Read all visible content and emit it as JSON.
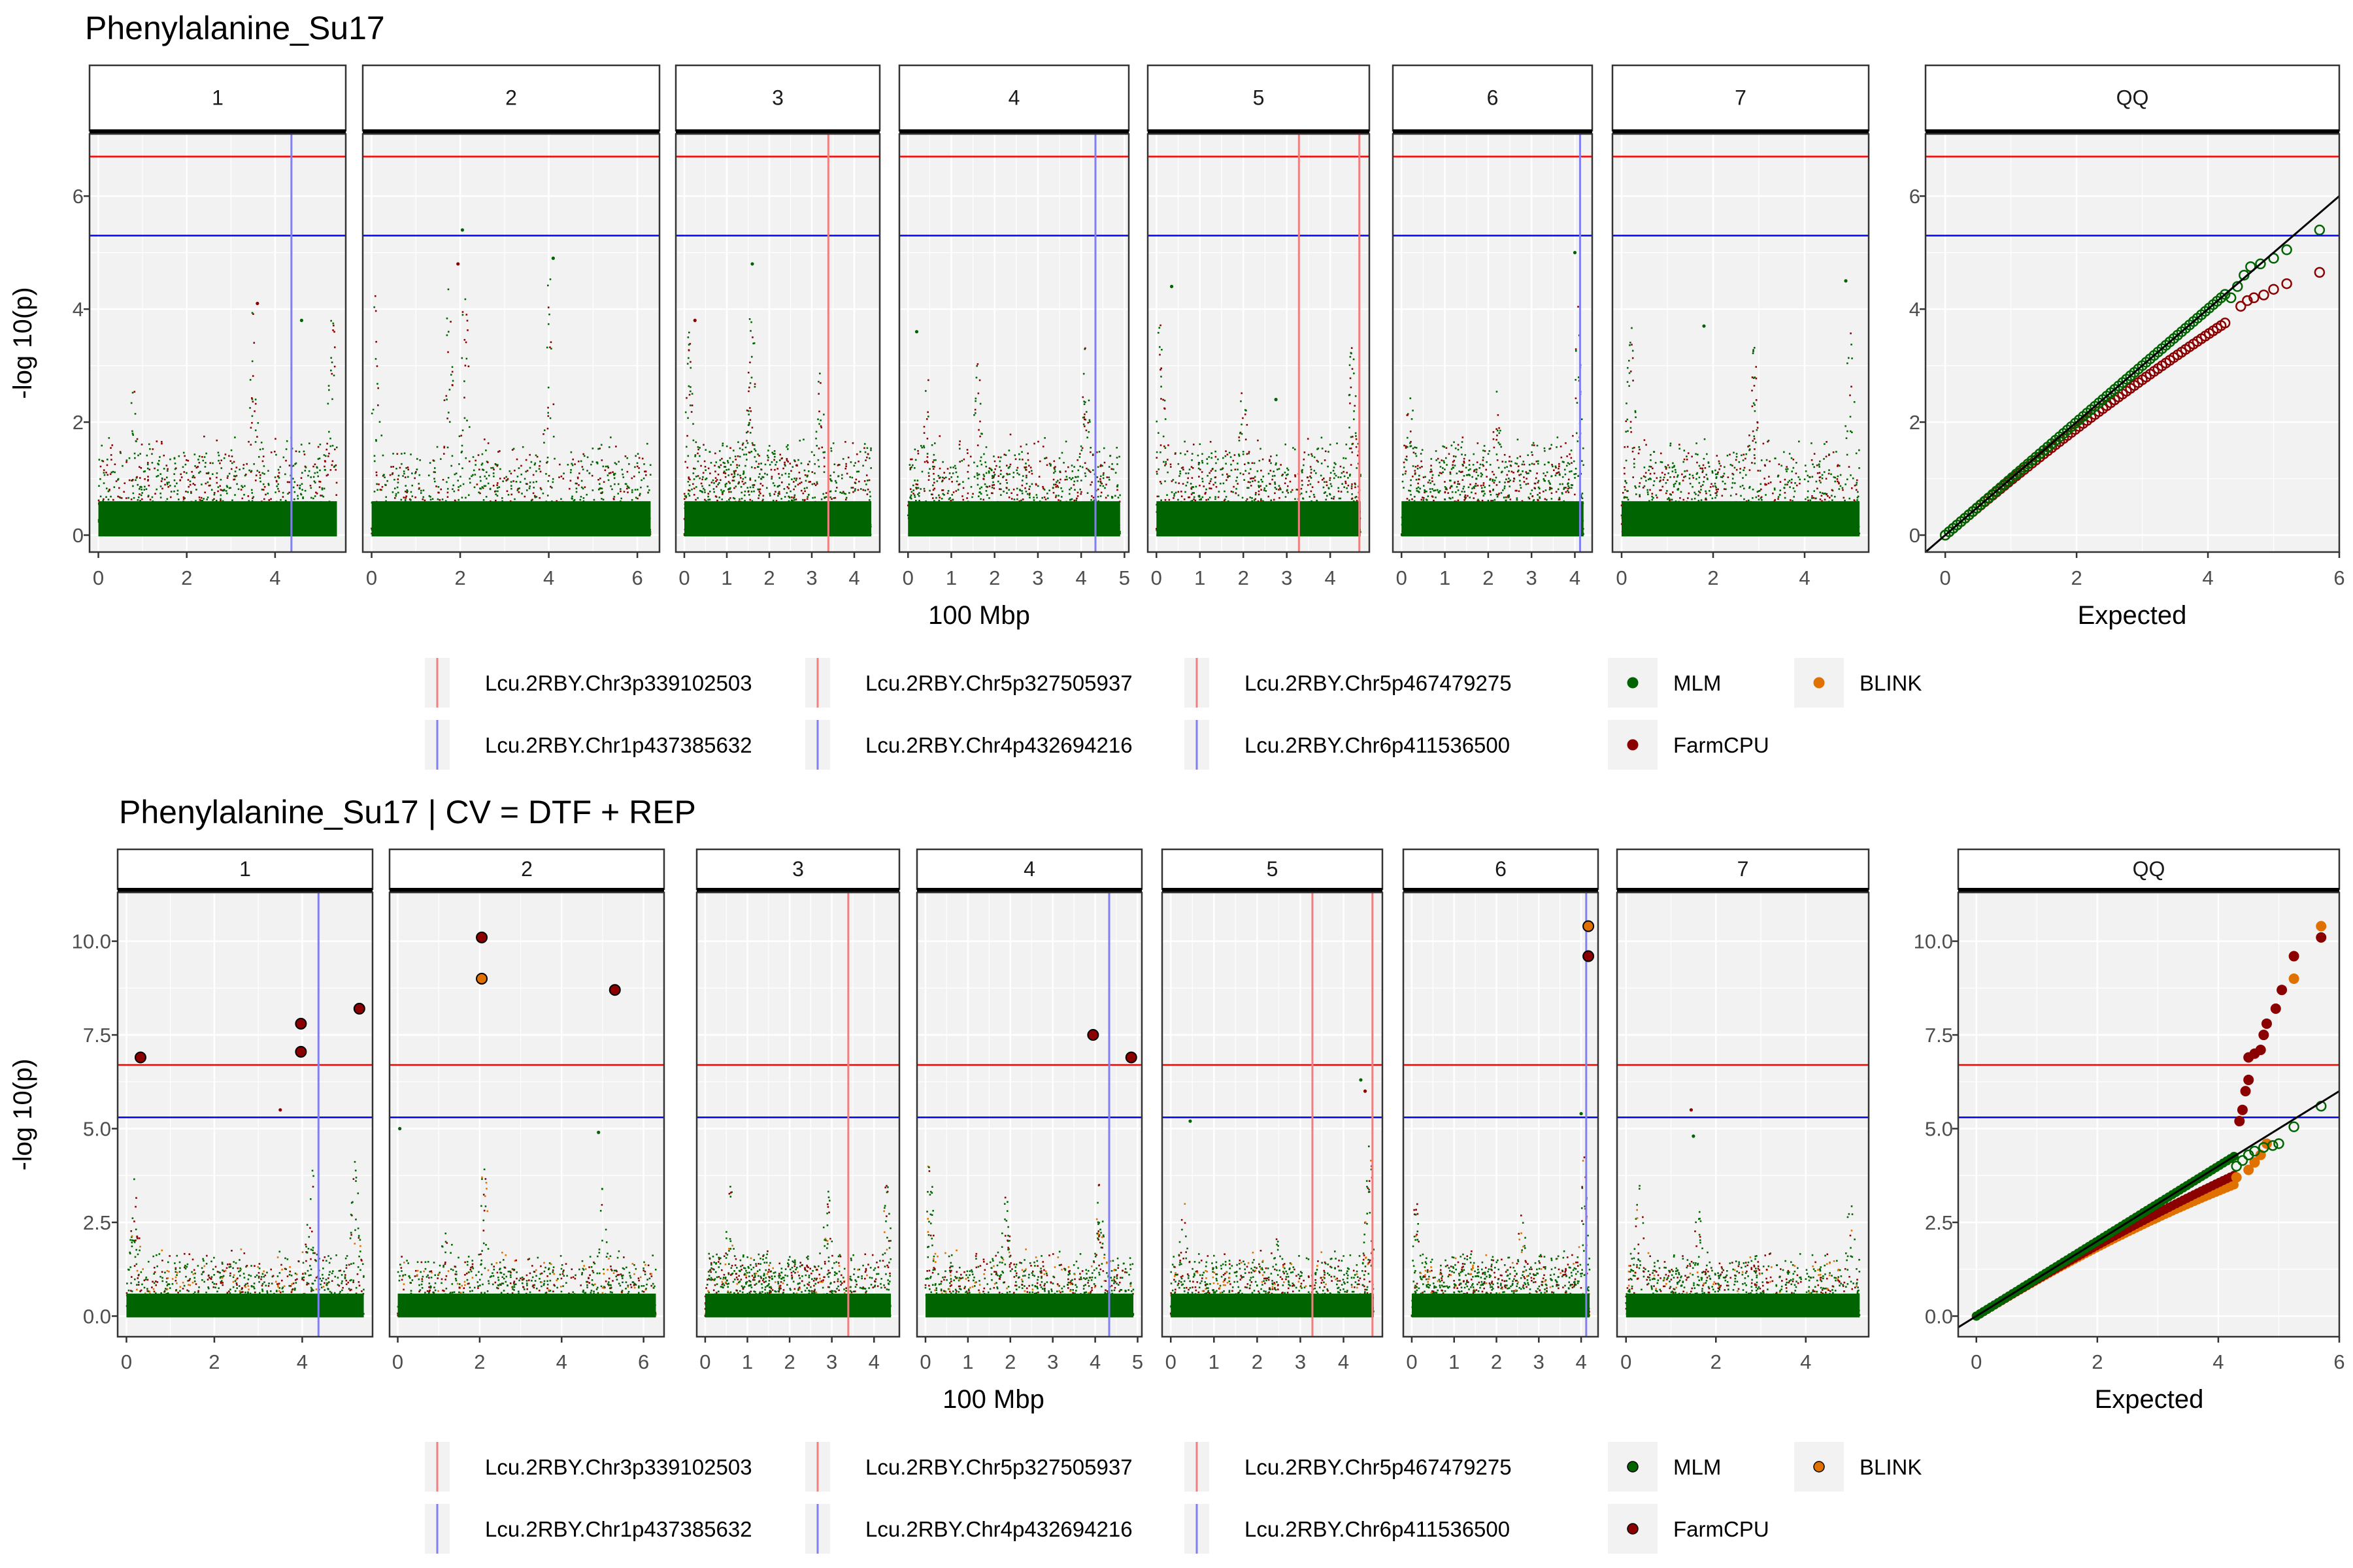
{
  "colors": {
    "panel_bg": "#f2f2f2",
    "grid": "#ffffff",
    "strip_bg": "#ffffff",
    "threshold_bonferroni": "#ff0000",
    "threshold_fdr": "#0000ff",
    "mlm": "#006400",
    "farmcpu": "#8b0000",
    "blink": "#e07000",
    "red_marker": "#f08080",
    "blue_marker": "#8080f0",
    "legend_key_bg": "#f2f2f2"
  },
  "legend": {
    "markers": [
      {
        "label": "Lcu.2RBY.Chr3p339102503",
        "color": "red"
      },
      {
        "label": "Lcu.2RBY.Chr5p327505937",
        "color": "red"
      },
      {
        "label": "Lcu.2RBY.Chr5p467479275",
        "color": "red"
      },
      {
        "label": "Lcu.2RBY.Chr1p437385632",
        "color": "blue"
      },
      {
        "label": "Lcu.2RBY.Chr4p432694216",
        "color": "blue"
      },
      {
        "label": "Lcu.2RBY.Chr6p411536500",
        "color": "blue"
      }
    ],
    "models": [
      {
        "label": "MLM",
        "color": "mlm"
      },
      {
        "label": "BLINK",
        "color": "blink"
      },
      {
        "label": "FarmCPU",
        "color": "farmcpu"
      }
    ]
  },
  "chart_data": [
    {
      "type": "scatter",
      "subtype": "manhattan+qq",
      "title": "Phenylalanine_Su17",
      "xlabel": "100 Mbp",
      "ylabel": "-log 10(p)",
      "qq_xlabel": "Expected",
      "ylim": [
        -0.3,
        7.1
      ],
      "yticks": [
        "0",
        "2",
        "4",
        "6"
      ],
      "ytick_values": [
        0,
        2,
        4,
        6
      ],
      "thresholds": {
        "bonferroni": 6.7,
        "fdr": 5.3
      },
      "models": [
        "MLM",
        "FarmCPU"
      ],
      "facets": [
        {
          "label": "1",
          "xlim": [
            -0.2,
            5.6
          ],
          "xticks": [
            0,
            2,
            4
          ],
          "length": 5.4,
          "markers": [
            {
              "pos": 4.37,
              "color": "blue"
            }
          ],
          "peaks": [
            {
              "pos": 3.5,
              "h": 4.1
            },
            {
              "pos": 0.8,
              "h": 2.8
            },
            {
              "pos": 5.3,
              "h": 4.0
            }
          ],
          "outliers": [
            {
              "x": 3.6,
              "y": 4.1,
              "m": "FarmCPU"
            },
            {
              "x": 4.6,
              "y": 3.8,
              "m": "MLM"
            }
          ]
        },
        {
          "label": "2",
          "xlim": [
            -0.2,
            6.5
          ],
          "xticks": [
            0,
            2,
            4,
            6
          ],
          "length": 6.3,
          "markers": [],
          "peaks": [
            {
              "pos": 0.1,
              "h": 4.4
            },
            {
              "pos": 1.75,
              "h": 4.5
            },
            {
              "pos": 2.1,
              "h": 4.8
            },
            {
              "pos": 4.0,
              "h": 4.9
            }
          ],
          "outliers": [
            {
              "x": 2.05,
              "y": 5.4,
              "m": "MLM"
            },
            {
              "x": 1.95,
              "y": 4.8,
              "m": "FarmCPU"
            },
            {
              "x": 4.1,
              "y": 4.9,
              "m": "MLM"
            }
          ]
        },
        {
          "label": "3",
          "xlim": [
            -0.2,
            4.6
          ],
          "xticks": [
            0,
            1,
            2,
            3,
            4
          ],
          "length": 4.4,
          "markers": [
            {
              "pos": 3.39,
              "color": "red"
            }
          ],
          "peaks": [
            {
              "pos": 1.6,
              "h": 4.8
            },
            {
              "pos": 0.1,
              "h": 3.7
            },
            {
              "pos": 3.2,
              "h": 3.0
            }
          ],
          "outliers": [
            {
              "x": 1.6,
              "y": 4.8,
              "m": "MLM"
            },
            {
              "x": 0.25,
              "y": 3.8,
              "m": "FarmCPU"
            }
          ]
        },
        {
          "label": "4",
          "xlim": [
            -0.2,
            5.1
          ],
          "xticks": [
            0,
            1,
            2,
            3,
            4,
            5
          ],
          "length": 4.9,
          "markers": [
            {
              "pos": 4.33,
              "color": "blue"
            }
          ],
          "peaks": [
            {
              "pos": 0.4,
              "h": 3.5
            },
            {
              "pos": 1.6,
              "h": 3.3
            },
            {
              "pos": 4.1,
              "h": 3.4
            }
          ],
          "outliers": [
            {
              "x": 0.2,
              "y": 3.6,
              "m": "MLM"
            }
          ]
        },
        {
          "label": "5",
          "xlim": [
            -0.2,
            4.9
          ],
          "xticks": [
            0,
            1,
            2,
            3,
            4
          ],
          "length": 4.7,
          "markers": [
            {
              "pos": 3.28,
              "color": "red"
            },
            {
              "pos": 4.67,
              "color": "red"
            }
          ],
          "peaks": [
            {
              "pos": 0.1,
              "h": 4.2
            },
            {
              "pos": 4.5,
              "h": 3.6
            },
            {
              "pos": 2.0,
              "h": 2.8
            }
          ],
          "outliers": [
            {
              "x": 0.35,
              "y": 4.4,
              "m": "MLM"
            },
            {
              "x": 2.75,
              "y": 2.4,
              "m": "MLM"
            }
          ]
        },
        {
          "label": "6",
          "xlim": [
            -0.2,
            4.4
          ],
          "xticks": [
            0,
            1,
            2,
            3,
            4
          ],
          "length": 4.2,
          "markers": [
            {
              "pos": 4.12,
              "color": "blue"
            }
          ],
          "peaks": [
            {
              "pos": 4.05,
              "h": 4.2
            },
            {
              "pos": 0.2,
              "h": 2.8
            },
            {
              "pos": 2.2,
              "h": 2.6
            }
          ],
          "outliers": [
            {
              "x": 4.0,
              "y": 5.0,
              "m": "MLM"
            }
          ]
        },
        {
          "label": "7",
          "xlim": [
            -0.2,
            5.4
          ],
          "xticks": [
            0,
            2,
            4
          ],
          "length": 5.2,
          "markers": [],
          "peaks": [
            {
              "pos": 0.2,
              "h": 3.8
            },
            {
              "pos": 2.9,
              "h": 3.4
            },
            {
              "pos": 5.0,
              "h": 3.8
            }
          ],
          "outliers": [
            {
              "x": 4.9,
              "y": 4.5,
              "m": "MLM"
            },
            {
              "x": 1.8,
              "y": 3.7,
              "m": "MLM"
            }
          ]
        }
      ],
      "qq": {
        "label": "QQ",
        "xlim": [
          -0.3,
          6.0
        ],
        "xticks": [
          0,
          2,
          4,
          6
        ],
        "line_intercept": 0,
        "line_slope": 1,
        "tails": {
          "MLM": [
            [
              4.35,
              4.2
            ],
            [
              4.45,
              4.4
            ],
            [
              4.55,
              4.6
            ],
            [
              4.65,
              4.75
            ],
            [
              4.8,
              4.8
            ],
            [
              5.0,
              4.9
            ],
            [
              5.2,
              5.05
            ],
            [
              5.7,
              5.4
            ]
          ],
          "FarmCPU": [
            [
              4.5,
              4.05
            ],
            [
              4.6,
              4.15
            ],
            [
              4.7,
              4.2
            ],
            [
              4.85,
              4.25
            ],
            [
              5.0,
              4.35
            ],
            [
              5.2,
              4.45
            ],
            [
              5.7,
              4.65
            ]
          ]
        },
        "open_markers": true
      }
    },
    {
      "type": "scatter",
      "subtype": "manhattan+qq",
      "title": "Phenylalanine_Su17 | CV = DTF + REP",
      "xlabel": "100 Mbp",
      "ylabel": "-log 10(p)",
      "qq_xlabel": "Expected",
      "ylim": [
        -0.55,
        11.3
      ],
      "yticks": [
        "0.0",
        "2.5",
        "5.0",
        "7.5",
        "10.0"
      ],
      "ytick_values": [
        0,
        2.5,
        5,
        7.5,
        10
      ],
      "thresholds": {
        "bonferroni": 6.7,
        "fdr": 5.3
      },
      "models": [
        "MLM",
        "FarmCPU",
        "BLINK"
      ],
      "facets": [
        {
          "label": "1",
          "xlim": [
            -0.2,
            5.6
          ],
          "xticks": [
            0,
            2,
            4
          ],
          "length": 5.4,
          "markers": [
            {
              "pos": 4.37,
              "color": "blue"
            }
          ],
          "peaks": [
            {
              "pos": 0.2,
              "h": 3.9
            },
            {
              "pos": 4.2,
              "h": 4.4
            },
            {
              "pos": 5.2,
              "h": 4.2
            }
          ],
          "hits": [
            {
              "x": 0.32,
              "y": 6.9,
              "m": "FarmCPU"
            },
            {
              "x": 3.97,
              "y": 7.8,
              "m": "FarmCPU"
            },
            {
              "x": 3.97,
              "y": 7.05,
              "m": "FarmCPU"
            },
            {
              "x": 5.3,
              "y": 8.2,
              "m": "FarmCPU"
            }
          ],
          "outliers": [
            {
              "x": 3.5,
              "y": 5.5,
              "m": "FarmCPU"
            }
          ]
        },
        {
          "label": "2",
          "xlim": [
            -0.2,
            6.5
          ],
          "xticks": [
            0,
            2,
            4,
            6
          ],
          "length": 6.3,
          "markers": [],
          "peaks": [
            {
              "pos": 1.2,
              "h": 4.3
            },
            {
              "pos": 2.1,
              "h": 4.5
            },
            {
              "pos": 5.0,
              "h": 3.5
            }
          ],
          "hits": [
            {
              "x": 2.05,
              "y": 10.1,
              "m": "FarmCPU"
            },
            {
              "x": 2.05,
              "y": 9.0,
              "m": "BLINK"
            },
            {
              "x": 5.3,
              "y": 8.7,
              "m": "FarmCPU"
            }
          ],
          "outliers": [
            {
              "x": 0.05,
              "y": 5.0,
              "m": "MLM"
            },
            {
              "x": 4.9,
              "y": 4.9,
              "m": "MLM"
            }
          ]
        },
        {
          "label": "3",
          "xlim": [
            -0.2,
            4.6
          ],
          "xticks": [
            0,
            1,
            2,
            3,
            4
          ],
          "length": 4.4,
          "markers": [
            {
              "pos": 3.39,
              "color": "red"
            }
          ],
          "peaks": [
            {
              "pos": 0.6,
              "h": 3.8
            },
            {
              "pos": 2.9,
              "h": 3.8
            },
            {
              "pos": 4.3,
              "h": 3.6
            }
          ],
          "hits": [],
          "outliers": []
        },
        {
          "label": "4",
          "xlim": [
            -0.2,
            5.1
          ],
          "xticks": [
            0,
            1,
            2,
            3,
            4,
            5
          ],
          "length": 4.9,
          "markers": [
            {
              "pos": 4.33,
              "color": "blue"
            }
          ],
          "peaks": [
            {
              "pos": 0.1,
              "h": 4.3
            },
            {
              "pos": 1.9,
              "h": 3.5
            },
            {
              "pos": 4.1,
              "h": 3.6
            }
          ],
          "hits": [
            {
              "x": 3.95,
              "y": 7.5,
              "m": "FarmCPU"
            },
            {
              "x": 4.85,
              "y": 6.9,
              "m": "FarmCPU"
            }
          ],
          "outliers": []
        },
        {
          "label": "5",
          "xlim": [
            -0.2,
            4.9
          ],
          "xticks": [
            0,
            1,
            2,
            3,
            4
          ],
          "length": 4.7,
          "markers": [
            {
              "pos": 3.28,
              "color": "red"
            },
            {
              "pos": 4.67,
              "color": "red"
            }
          ],
          "peaks": [
            {
              "pos": 4.6,
              "h": 4.6
            },
            {
              "pos": 0.3,
              "h": 3.4
            },
            {
              "pos": 2.5,
              "h": 2.8
            }
          ],
          "hits": [],
          "outliers": [
            {
              "x": 4.4,
              "y": 6.3,
              "m": "MLM"
            },
            {
              "x": 0.45,
              "y": 5.2,
              "m": "MLM"
            },
            {
              "x": 4.5,
              "y": 6.0,
              "m": "FarmCPU"
            }
          ]
        },
        {
          "label": "6",
          "xlim": [
            -0.2,
            4.4
          ],
          "xticks": [
            0,
            1,
            2,
            3,
            4
          ],
          "length": 4.2,
          "markers": [
            {
              "pos": 4.12,
              "color": "blue"
            }
          ],
          "peaks": [
            {
              "pos": 4.05,
              "h": 4.4
            },
            {
              "pos": 0.1,
              "h": 3.2
            },
            {
              "pos": 2.6,
              "h": 3.0
            }
          ],
          "hits": [
            {
              "x": 4.17,
              "y": 10.4,
              "m": "BLINK"
            },
            {
              "x": 4.17,
              "y": 9.6,
              "m": "FarmCPU"
            }
          ],
          "outliers": [
            {
              "x": 4.0,
              "y": 5.4,
              "m": "MLM"
            }
          ]
        },
        {
          "label": "7",
          "xlim": [
            -0.2,
            5.4
          ],
          "xticks": [
            0,
            2,
            4
          ],
          "length": 5.2,
          "markers": [],
          "peaks": [
            {
              "pos": 0.3,
              "h": 3.6
            },
            {
              "pos": 1.6,
              "h": 3.2
            },
            {
              "pos": 5.0,
              "h": 3.3
            }
          ],
          "hits": [],
          "outliers": [
            {
              "x": 1.45,
              "y": 5.5,
              "m": "FarmCPU"
            },
            {
              "x": 1.5,
              "y": 4.8,
              "m": "MLM"
            }
          ]
        }
      ],
      "qq": {
        "label": "QQ",
        "xlim": [
          -0.3,
          6.0
        ],
        "xticks": [
          0,
          2,
          4,
          6
        ],
        "line_intercept": 0,
        "line_slope": 1,
        "tails": {
          "MLM": [
            [
              4.3,
              4.0
            ],
            [
              4.4,
              4.15
            ],
            [
              4.5,
              4.3
            ],
            [
              4.6,
              4.4
            ],
            [
              4.75,
              4.5
            ],
            [
              4.9,
              4.55
            ],
            [
              5.0,
              4.6
            ],
            [
              5.25,
              5.05
            ],
            [
              5.7,
              5.6
            ]
          ],
          "FarmCPU": [
            [
              4.35,
              5.2
            ],
            [
              4.4,
              5.5
            ],
            [
              4.45,
              6.0
            ],
            [
              4.5,
              6.3
            ],
            [
              4.5,
              6.9
            ],
            [
              4.6,
              7.0
            ],
            [
              4.7,
              7.1
            ],
            [
              4.75,
              7.5
            ],
            [
              4.8,
              7.8
            ],
            [
              4.95,
              8.2
            ],
            [
              5.05,
              8.7
            ],
            [
              5.25,
              9.6
            ],
            [
              5.7,
              10.1
            ]
          ],
          "BLINK": [
            [
              4.3,
              3.7
            ],
            [
              4.5,
              3.9
            ],
            [
              4.6,
              4.1
            ],
            [
              4.7,
              4.3
            ],
            [
              4.8,
              4.6
            ],
            [
              5.25,
              9.0
            ],
            [
              5.7,
              10.4
            ]
          ]
        },
        "open_markers": false
      }
    }
  ]
}
